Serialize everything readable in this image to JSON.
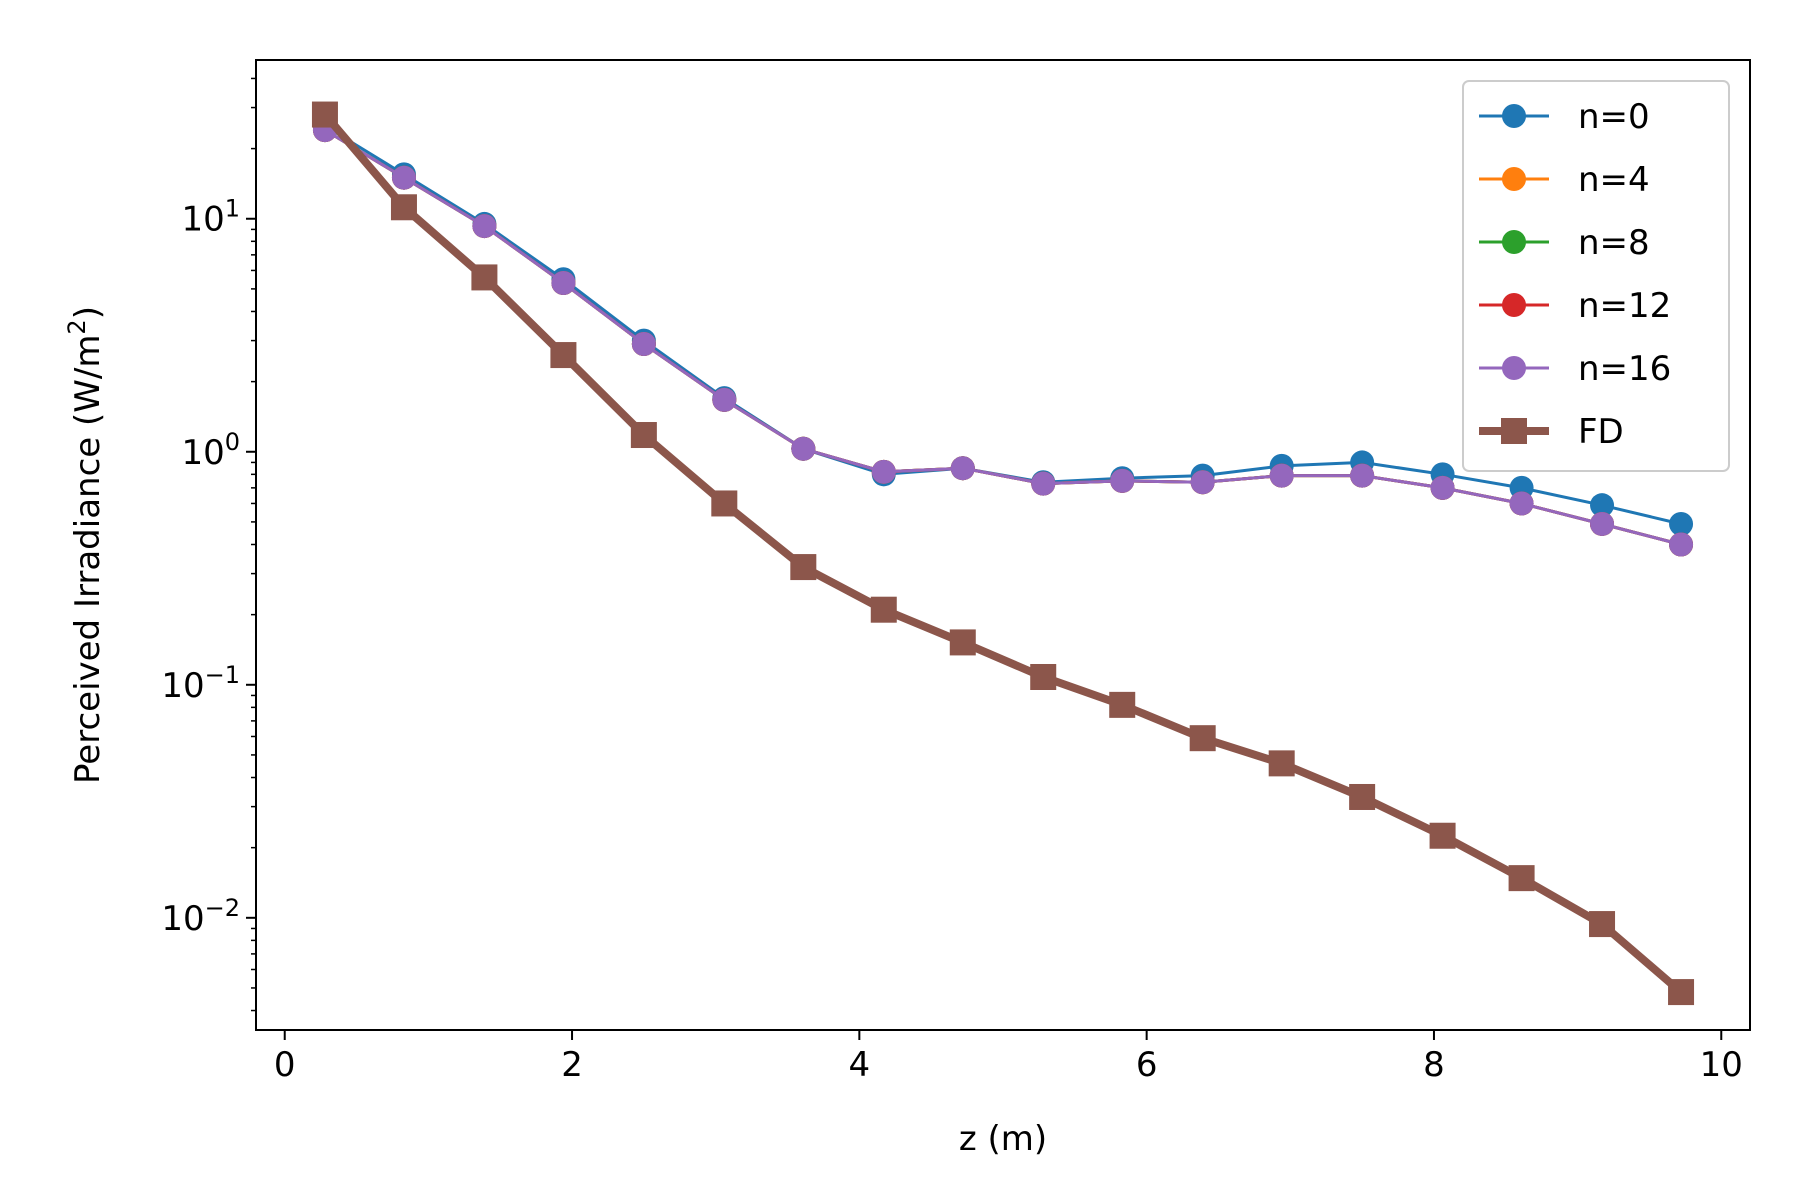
{
  "chart_data": {
    "type": "line",
    "title": "",
    "xlabel": "z (m)",
    "ylabel": "Perceived Irradiance (W/m",
    "ylabel_sup": "2",
    "ylabel_end": ")",
    "xlim": [
      -0.2,
      10.2
    ],
    "ylim": [
      0.0033,
      48
    ],
    "yscale": "log",
    "grid": false,
    "legend_position": "top-right",
    "x_ticks": [
      0,
      2,
      4,
      6,
      8,
      10
    ],
    "x_tick_labels": [
      "0",
      "2",
      "4",
      "6",
      "8",
      "10"
    ],
    "y_ticks": [
      {
        "value": 10,
        "base": "10",
        "exp": "1"
      },
      {
        "value": 1,
        "base": "10",
        "exp": "0"
      },
      {
        "value": 0.1,
        "base": "10",
        "exp": "−1"
      },
      {
        "value": 0.01,
        "base": "10",
        "exp": "−2"
      }
    ],
    "x": [
      0.28,
      0.83,
      1.39,
      1.94,
      2.5,
      3.06,
      3.61,
      4.17,
      4.72,
      5.28,
      5.83,
      6.39,
      6.94,
      7.5,
      8.06,
      8.61,
      9.17,
      9.72
    ],
    "series": [
      {
        "name": "n=0",
        "color": "#1f77b4",
        "marker": "circle",
        "values": [
          25,
          15.5,
          9.5,
          5.5,
          3.0,
          1.7,
          1.03,
          0.8,
          0.85,
          0.74,
          0.77,
          0.79,
          0.87,
          0.9,
          0.8,
          0.7,
          0.59,
          0.49
        ]
      },
      {
        "name": "n=4",
        "color": "#ff7f0e",
        "marker": "circle",
        "values": [
          24,
          15,
          9.3,
          5.3,
          2.9,
          1.67,
          1.03,
          0.82,
          0.85,
          0.73,
          0.75,
          0.74,
          0.79,
          0.79,
          0.7,
          0.6,
          0.49,
          0.4
        ]
      },
      {
        "name": "n=8",
        "color": "#2ca02c",
        "marker": "circle",
        "values": [
          24,
          15,
          9.3,
          5.3,
          2.9,
          1.67,
          1.03,
          0.82,
          0.85,
          0.73,
          0.75,
          0.74,
          0.79,
          0.79,
          0.7,
          0.6,
          0.49,
          0.4
        ]
      },
      {
        "name": "n=12",
        "color": "#d62728",
        "marker": "circle",
        "values": [
          24,
          15,
          9.3,
          5.3,
          2.9,
          1.67,
          1.03,
          0.82,
          0.85,
          0.73,
          0.75,
          0.74,
          0.79,
          0.79,
          0.7,
          0.6,
          0.49,
          0.4
        ]
      },
      {
        "name": "n=16",
        "color": "#9467bd",
        "marker": "circle",
        "values": [
          24,
          15,
          9.3,
          5.3,
          2.9,
          1.67,
          1.03,
          0.82,
          0.85,
          0.73,
          0.75,
          0.74,
          0.79,
          0.79,
          0.7,
          0.6,
          0.49,
          0.4
        ]
      },
      {
        "name": "FD",
        "color": "#8c564b",
        "marker": "square",
        "values": [
          28,
          11.2,
          5.6,
          2.6,
          1.18,
          0.6,
          0.32,
          0.21,
          0.152,
          0.108,
          0.082,
          0.059,
          0.046,
          0.033,
          0.0225,
          0.0148,
          0.0094,
          0.0048
        ]
      }
    ]
  }
}
